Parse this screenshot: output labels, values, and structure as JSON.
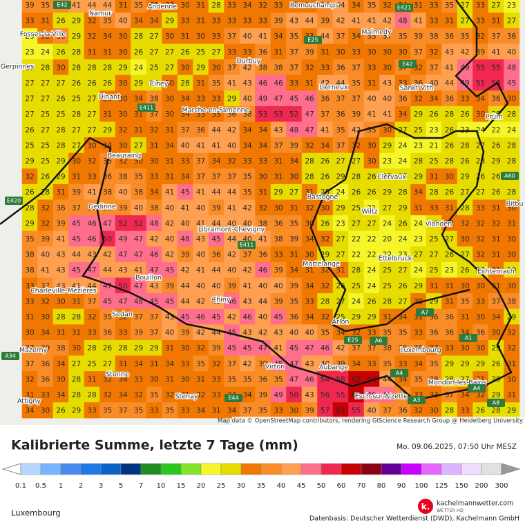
{
  "header": {
    "title": "Kalibrierte Summe, letzte 7 Tage (mm)",
    "timestamp": "Mo. 09.06.2025, 07:50 Uhr MESZ"
  },
  "map": {
    "credit": "Map data © OpenStreetMap contributors, rendering GIScience Research Group @ Heidelberg University",
    "places": [
      "Namur",
      "Andenne",
      "Remouchamps",
      "E42",
      "E421",
      "Fosses-la-Ville",
      "E25",
      "Malmedy",
      "Durbuy",
      "E42",
      "Gerpinnes",
      "Ciney",
      "Lierneux",
      "Sankt Vith",
      "Dinant",
      "E411",
      "Marche-en-Famenne",
      "Prüm",
      "Beauraing",
      "Clervaux",
      "A60",
      "E420",
      "Gedinne",
      "Bastogne",
      "Bitbu",
      "Wiltz",
      "Libramont-Chevigny",
      "Vianden",
      "E411",
      "Ettelbruck",
      "Echternach",
      "Martelange",
      "Bouillon",
      "Charleville-Mézières",
      "Chiny",
      "A7",
      "Sedan",
      "Arlon",
      "A1",
      "E25",
      "A6",
      "Luxembourg",
      "A34",
      "Mazerny",
      "Virton",
      "Aubange",
      "A4",
      "Stonne",
      "Mondorf-les-Bains",
      "Esch-sur-Alzette",
      "A4",
      "E44",
      "Stenay",
      "A3",
      "Attigny",
      "A8"
    ],
    "grid": [
      [
        39,
        35,
        36,
        41,
        44,
        44,
        31,
        35,
        30,
        33,
        30,
        31,
        28,
        33,
        34,
        32,
        33,
        31,
        30,
        36,
        44,
        34,
        35,
        32,
        34,
        31,
        33,
        35,
        27,
        33,
        27,
        23
      ],
      [
        33,
        31,
        26,
        29,
        32,
        35,
        40,
        34,
        34,
        29,
        33,
        31,
        33,
        33,
        33,
        33,
        39,
        43,
        44,
        39,
        42,
        41,
        41,
        42,
        48,
        41,
        33,
        31,
        27,
        33,
        31,
        27
      ],
      [
        23,
        30,
        36,
        29,
        32,
        34,
        30,
        28,
        27,
        30,
        31,
        30,
        33,
        37,
        40,
        41,
        34,
        35,
        33,
        44,
        37,
        34,
        35,
        37,
        35,
        39,
        38,
        36,
        35,
        32,
        37,
        36
      ],
      [
        23,
        24,
        26,
        28,
        31,
        31,
        30,
        26,
        27,
        27,
        26,
        25,
        27,
        33,
        33,
        36,
        31,
        37,
        39,
        31,
        30,
        33,
        30,
        30,
        30,
        37,
        32,
        43,
        42,
        39,
        41,
        40
      ],
      [
        25,
        28,
        30,
        28,
        28,
        28,
        29,
        24,
        25,
        27,
        30,
        29,
        30,
        37,
        42,
        38,
        38,
        37,
        32,
        33,
        36,
        37,
        33,
        30,
        37,
        32,
        37,
        41,
        49,
        55,
        55,
        48
      ],
      [
        27,
        27,
        27,
        26,
        26,
        26,
        30,
        29,
        28,
        30,
        28,
        31,
        35,
        41,
        43,
        46,
        46,
        33,
        31,
        42,
        44,
        35,
        31,
        43,
        33,
        36,
        40,
        44,
        49,
        51,
        50,
        45
      ],
      [
        27,
        27,
        26,
        25,
        27,
        30,
        30,
        34,
        38,
        30,
        34,
        33,
        33,
        29,
        40,
        49,
        47,
        45,
        46,
        36,
        37,
        37,
        40,
        40,
        36,
        32,
        34,
        36,
        33,
        34,
        36,
        30
      ],
      [
        27,
        25,
        25,
        28,
        27,
        31,
        30,
        31,
        37,
        30,
        34,
        33,
        33,
        36,
        38,
        53,
        53,
        52,
        47,
        37,
        36,
        39,
        41,
        41,
        34,
        29,
        26,
        28,
        26,
        30,
        29,
        28
      ],
      [
        26,
        27,
        28,
        27,
        27,
        29,
        32,
        31,
        32,
        31,
        37,
        36,
        44,
        42,
        34,
        34,
        43,
        48,
        47,
        41,
        35,
        42,
        35,
        30,
        27,
        25,
        23,
        26,
        23,
        24,
        22,
        24
      ],
      [
        25,
        25,
        28,
        27,
        30,
        34,
        30,
        27,
        31,
        34,
        40,
        41,
        41,
        40,
        34,
        34,
        37,
        39,
        32,
        34,
        37,
        32,
        30,
        29,
        24,
        23,
        21,
        26,
        28,
        27,
        26,
        28
      ],
      [
        29,
        25,
        29,
        30,
        32,
        35,
        32,
        30,
        30,
        31,
        33,
        37,
        34,
        32,
        33,
        33,
        31,
        34,
        28,
        26,
        27,
        27,
        30,
        23,
        24,
        28,
        25,
        28,
        26,
        28,
        29,
        28
      ],
      [
        32,
        26,
        29,
        31,
        33,
        36,
        38,
        35,
        33,
        31,
        34,
        37,
        37,
        37,
        35,
        30,
        31,
        30,
        28,
        26,
        29,
        28,
        26,
        27,
        27,
        29,
        31,
        30,
        29,
        26,
        26,
        27
      ],
      [
        26,
        28,
        31,
        39,
        41,
        38,
        40,
        38,
        34,
        41,
        45,
        41,
        44,
        44,
        35,
        31,
        29,
        27,
        31,
        25,
        24,
        26,
        26,
        29,
        28,
        34,
        28,
        26,
        27,
        27,
        26,
        28
      ],
      [
        28,
        32,
        36,
        37,
        37,
        36,
        39,
        40,
        38,
        40,
        41,
        40,
        39,
        41,
        42,
        32,
        30,
        31,
        32,
        30,
        29,
        25,
        21,
        27,
        29,
        31,
        33,
        31,
        28,
        33,
        31,
        30
      ],
      [
        29,
        32,
        39,
        45,
        46,
        47,
        52,
        52,
        48,
        42,
        40,
        41,
        44,
        40,
        40,
        38,
        36,
        35,
        30,
        26,
        23,
        27,
        27,
        24,
        26,
        24,
        28,
        32,
        32,
        32,
        32,
        31
      ],
      [
        35,
        39,
        41,
        45,
        46,
        50,
        49,
        47,
        42,
        40,
        48,
        43,
        45,
        44,
        40,
        41,
        38,
        39,
        34,
        32,
        27,
        22,
        22,
        20,
        24,
        23,
        25,
        27,
        30,
        32,
        31,
        30
      ],
      [
        38,
        40,
        43,
        44,
        43,
        42,
        47,
        47,
        46,
        42,
        39,
        40,
        36,
        42,
        37,
        36,
        33,
        31,
        30,
        29,
        27,
        22,
        22,
        22,
        23,
        27,
        27,
        26,
        27,
        32,
        31,
        30
      ],
      [
        38,
        41,
        43,
        45,
        47,
        44,
        43,
        41,
        47,
        45,
        42,
        41,
        44,
        40,
        42,
        46,
        39,
        34,
        31,
        32,
        31,
        28,
        24,
        25,
        27,
        24,
        25,
        23,
        26,
        28,
        31,
        29
      ],
      [
        33,
        37,
        43,
        41,
        44,
        47,
        50,
        47,
        43,
        39,
        44,
        40,
        40,
        39,
        41,
        40,
        40,
        39,
        34,
        32,
        26,
        25,
        24,
        25,
        26,
        29,
        31,
        31,
        30,
        30,
        31,
        30
      ],
      [
        33,
        32,
        30,
        31,
        37,
        45,
        47,
        48,
        45,
        45,
        44,
        42,
        40,
        46,
        43,
        44,
        39,
        35,
        33,
        28,
        27,
        24,
        26,
        28,
        27,
        30,
        29,
        31,
        35,
        33,
        37,
        38
      ],
      [
        31,
        30,
        28,
        28,
        32,
        35,
        32,
        37,
        37,
        43,
        45,
        46,
        45,
        42,
        46,
        40,
        45,
        36,
        34,
        32,
        25,
        29,
        29,
        31,
        34,
        31,
        36,
        36,
        31,
        30,
        34,
        29
      ],
      [
        30,
        34,
        31,
        31,
        33,
        36,
        33,
        39,
        37,
        40,
        39,
        42,
        44,
        45,
        43,
        42,
        43,
        40,
        40,
        35,
        34,
        32,
        33,
        35,
        35,
        33,
        36,
        36,
        34,
        36,
        30,
        32
      ],
      [
        37,
        39,
        38,
        30,
        28,
        26,
        28,
        29,
        29,
        31,
        30,
        32,
        39,
        45,
        45,
        47,
        41,
        45,
        47,
        46,
        42,
        37,
        37,
        38,
        36,
        36,
        33,
        33,
        30,
        30,
        29,
        32
      ],
      [
        37,
        36,
        34,
        27,
        25,
        27,
        31,
        34,
        31,
        34,
        33,
        35,
        32,
        37,
        42,
        39,
        45,
        47,
        43,
        40,
        39,
        34,
        33,
        35,
        33,
        34,
        35,
        29,
        29,
        29,
        26,
        31
      ],
      [
        32,
        36,
        30,
        28,
        31,
        32,
        34,
        33,
        30,
        31,
        30,
        31,
        33,
        35,
        35,
        36,
        35,
        47,
        46,
        54,
        58,
        62,
        64,
        44,
        34,
        35,
        38,
        28,
        27,
        31,
        29,
        30
      ],
      [
        31,
        33,
        34,
        28,
        28,
        32,
        34,
        32,
        35,
        32,
        31,
        32,
        33,
        34,
        34,
        39,
        49,
        50,
        43,
        56,
        55,
        63,
        46,
        49,
        36,
        33,
        33,
        37,
        34,
        32,
        29,
        31
      ],
      [
        34,
        30,
        26,
        29,
        33,
        35,
        37,
        35,
        33,
        35,
        33,
        34,
        31,
        34,
        37,
        35,
        33,
        30,
        39,
        57,
        63,
        55,
        40,
        37,
        36,
        32,
        30,
        28,
        33,
        26,
        28,
        29
      ]
    ]
  },
  "legend": {
    "labels": [
      0.1,
      0.5,
      1,
      2,
      3,
      5,
      7,
      10,
      15,
      20,
      25,
      30,
      35,
      40,
      45,
      50,
      60,
      70,
      80,
      90,
      100,
      125,
      150,
      200,
      300
    ],
    "colors": [
      "#b4d7ff",
      "#78b4ff",
      "#468cf0",
      "#1e78e6",
      "#0a64c8",
      "#003282",
      "#1e8c1e",
      "#28c81e",
      "#82e628",
      "#f5f528",
      "#e6dc00",
      "#f07800",
      "#fa8c28",
      "#ffa050",
      "#ff6e8c",
      "#f02850",
      "#c80000",
      "#8c0014",
      "#640096",
      "#c800ff",
      "#e664ff",
      "#dcb4ff",
      "#f0dcff",
      "#e1e1e1"
    ]
  },
  "footer": {
    "region": "Luxembourg",
    "brand": "kachelmannwetter.com",
    "brand_sub": "WETTER HD",
    "source": "Datenbasis: Deutscher Wetterdienst (DWD), Kachelmann GmbH"
  }
}
